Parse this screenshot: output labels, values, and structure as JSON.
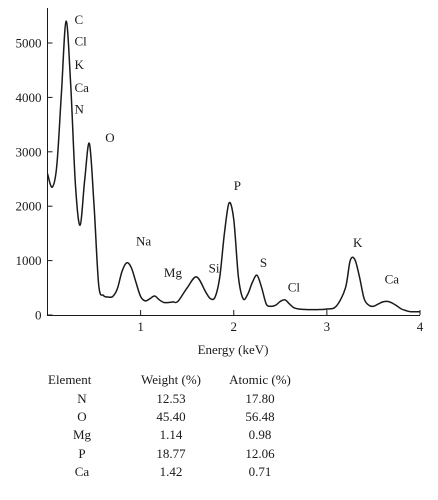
{
  "chart_data": {
    "type": "line",
    "xlabel": "Energy (keV)",
    "ylabel": "",
    "xlim": [
      0,
      4
    ],
    "ylim": [
      0,
      5500
    ],
    "x_ticks": [
      1,
      2,
      3,
      4
    ],
    "y_ticks": [
      0,
      1000,
      2000,
      3000,
      4000,
      5000
    ],
    "grid": false,
    "series": [
      {
        "x": [
          0.0,
          0.05,
          0.1,
          0.15,
          0.2,
          0.25,
          0.3,
          0.35,
          0.4,
          0.45,
          0.5,
          0.55,
          0.6,
          0.65,
          0.7,
          0.75,
          0.8,
          0.85,
          0.9,
          0.95,
          1.0,
          1.05,
          1.1,
          1.15,
          1.2,
          1.25,
          1.3,
          1.35,
          1.4,
          1.5,
          1.6,
          1.7,
          1.75,
          1.8,
          1.85,
          1.9,
          1.95,
          2.0,
          2.05,
          2.1,
          2.15,
          2.2,
          2.25,
          2.3,
          2.35,
          2.4,
          2.45,
          2.5,
          2.55,
          2.6,
          2.65,
          2.7,
          2.8,
          2.9,
          3.0,
          3.1,
          3.2,
          3.25,
          3.3,
          3.35,
          3.4,
          3.45,
          3.5,
          3.55,
          3.6,
          3.65,
          3.7,
          3.75,
          3.8,
          3.85,
          3.9,
          4.0
        ],
        "y": [
          2600,
          2350,
          2750,
          4100,
          5400,
          4200,
          2400,
          1650,
          2500,
          3150,
          2000,
          550,
          360,
          330,
          340,
          480,
          800,
          960,
          870,
          600,
          340,
          260,
          300,
          350,
          280,
          230,
          230,
          240,
          250,
          500,
          700,
          420,
          300,
          330,
          700,
          1500,
          2060,
          1750,
          700,
          300,
          380,
          600,
          730,
          500,
          200,
          160,
          180,
          250,
          280,
          200,
          130,
          110,
          100,
          100,
          110,
          160,
          500,
          1000,
          1020,
          700,
          300,
          180,
          160,
          200,
          240,
          250,
          220,
          170,
          110,
          80,
          60,
          60
        ]
      }
    ],
    "peak_labels": [
      {
        "text": "C",
        "x": 0.29,
        "y": 5350
      },
      {
        "text": "Cl",
        "x": 0.29,
        "y": 4950
      },
      {
        "text": "K",
        "x": 0.29,
        "y": 4520
      },
      {
        "text": "Ca",
        "x": 0.29,
        "y": 4100
      },
      {
        "text": "N",
        "x": 0.29,
        "y": 3700
      },
      {
        "text": "O",
        "x": 0.62,
        "y": 3180
      },
      {
        "text": "Na",
        "x": 0.95,
        "y": 1280
      },
      {
        "text": "Mg",
        "x": 1.25,
        "y": 700
      },
      {
        "text": "Si",
        "x": 1.73,
        "y": 780
      },
      {
        "text": "P",
        "x": 2.0,
        "y": 2300
      },
      {
        "text": "S",
        "x": 2.28,
        "y": 880
      },
      {
        "text": "Cl",
        "x": 2.58,
        "y": 430
      },
      {
        "text": "K",
        "x": 3.28,
        "y": 1250
      },
      {
        "text": "Ca",
        "x": 3.62,
        "y": 580
      }
    ]
  },
  "composition_table": {
    "headers": [
      "Element",
      "Weight (%)",
      "Atomic (%)"
    ],
    "rows": [
      [
        "N",
        "12.53",
        "17.80"
      ],
      [
        "O",
        "45.40",
        "56.48"
      ],
      [
        "Mg",
        "1.14",
        "0.98"
      ],
      [
        "P",
        "18.77",
        "12.06"
      ],
      [
        "Ca",
        "1.42",
        "0.71"
      ]
    ]
  }
}
